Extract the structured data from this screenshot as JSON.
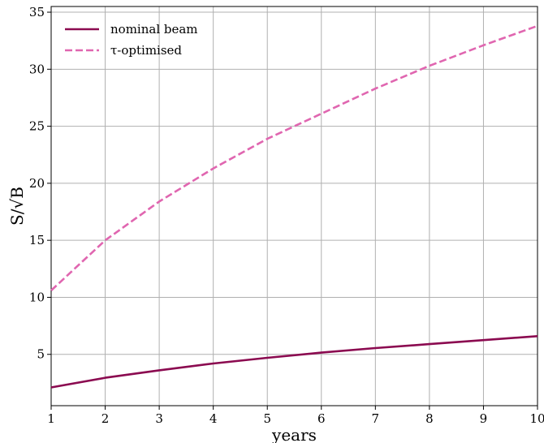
{
  "chart_data": {
    "type": "line",
    "title": "",
    "xlabel": "years",
    "ylabel": "S/√B",
    "xlim": [
      1,
      10
    ],
    "ylim": [
      0.5,
      35.5
    ],
    "x_ticks": [
      1,
      2,
      3,
      4,
      5,
      6,
      7,
      8,
      9,
      10
    ],
    "y_ticks": [
      5,
      10,
      15,
      20,
      25,
      30,
      35
    ],
    "grid": true,
    "legend_position": "top-left",
    "x": [
      1,
      2,
      3,
      4,
      5,
      6,
      7,
      8,
      9,
      10
    ],
    "series": [
      {
        "name": "nominal beam",
        "style": "solid",
        "color": "#8b0a50",
        "values": [
          2.1,
          2.95,
          3.6,
          4.2,
          4.7,
          5.15,
          5.55,
          5.9,
          6.25,
          6.6
        ]
      },
      {
        "name": "τ-optimised",
        "style": "dashed",
        "color": "#e066b0",
        "values": [
          10.6,
          15.0,
          18.4,
          21.3,
          23.9,
          26.1,
          28.3,
          30.3,
          32.1,
          33.8
        ]
      }
    ]
  }
}
